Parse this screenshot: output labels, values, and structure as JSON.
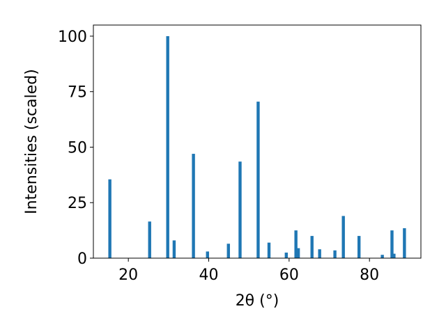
{
  "chart_data": {
    "type": "bar",
    "title": "",
    "xlabel": "2θ (°)",
    "ylabel": "Intensities (scaled)",
    "xlim": [
      11.3,
      92.8
    ],
    "ylim": [
      0,
      105
    ],
    "x_ticks": [
      20,
      40,
      60,
      80
    ],
    "y_ticks": [
      0,
      25,
      50,
      75,
      100
    ],
    "grid": false,
    "legend": "none",
    "bar_color": "#1f77b4",
    "x": [
      15.4,
      25.3,
      29.8,
      31.4,
      36.2,
      39.7,
      44.9,
      47.8,
      52.3,
      55.0,
      59.3,
      61.7,
      62.3,
      65.7,
      67.6,
      71.4,
      73.5,
      77.4,
      83.2,
      85.6,
      86.1,
      88.7
    ],
    "values": [
      35.5,
      16.5,
      100,
      8,
      47,
      3,
      6.5,
      43.5,
      70.5,
      7,
      2.5,
      12.5,
      4.5,
      10,
      4,
      3.5,
      19,
      10,
      1.5,
      12.5,
      2,
      13.5
    ]
  }
}
